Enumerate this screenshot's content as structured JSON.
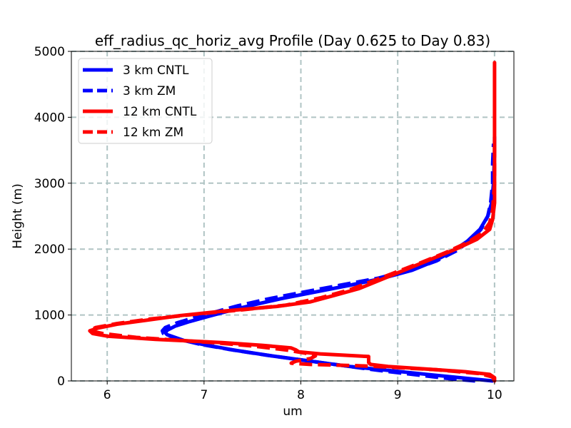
{
  "chart_data": {
    "type": "line",
    "title": "eff_radius_qc_horiz_avg Profile (Day 0.625 to Day 0.83)",
    "xlabel": "um",
    "ylabel": "Height (m)",
    "xlim": [
      5.63,
      10.2
    ],
    "ylim": [
      0,
      5000
    ],
    "xticks": [
      6,
      7,
      8,
      9,
      10
    ],
    "yticks": [
      0,
      1000,
      2000,
      3000,
      4000,
      5000
    ],
    "xtick_labels": [
      "6",
      "7",
      "8",
      "9",
      "10"
    ],
    "ytick_labels": [
      "0",
      "1000",
      "2000",
      "3000",
      "4000",
      "5000"
    ],
    "grid": true,
    "legend_position": "upper-left",
    "series": [
      {
        "name": "3 km CNTL",
        "color": "#0000ff",
        "style": "solid",
        "points": [
          [
            9.98,
            0
          ],
          [
            9.7,
            40
          ],
          [
            9.3,
            100
          ],
          [
            8.9,
            160
          ],
          [
            8.5,
            220
          ],
          [
            8.1,
            300
          ],
          [
            7.7,
            380
          ],
          [
            7.3,
            470
          ],
          [
            7.0,
            550
          ],
          [
            6.8,
            610
          ],
          [
            6.7,
            660
          ],
          [
            6.62,
            700
          ],
          [
            6.6,
            730
          ],
          [
            6.62,
            770
          ],
          [
            6.7,
            830
          ],
          [
            6.85,
            900
          ],
          [
            7.05,
            980
          ],
          [
            7.25,
            1060
          ],
          [
            7.5,
            1150
          ],
          [
            7.8,
            1250
          ],
          [
            8.15,
            1350
          ],
          [
            8.5,
            1450
          ],
          [
            8.85,
            1560
          ],
          [
            9.15,
            1680
          ],
          [
            9.35,
            1800
          ],
          [
            9.55,
            1950
          ],
          [
            9.72,
            2120
          ],
          [
            9.85,
            2300
          ],
          [
            9.93,
            2500
          ],
          [
            9.97,
            2700
          ],
          [
            9.99,
            3000
          ],
          [
            10.0,
            3500
          ],
          [
            10.0,
            3700
          ]
        ]
      },
      {
        "name": "3 km ZM",
        "color": "#0000ff",
        "style": "dashed",
        "points": [
          [
            9.8,
            0
          ],
          [
            9.5,
            40
          ],
          [
            9.15,
            100
          ],
          [
            8.8,
            160
          ],
          [
            8.45,
            230
          ],
          [
            8.05,
            310
          ],
          [
            7.65,
            390
          ],
          [
            7.25,
            480
          ],
          [
            6.95,
            560
          ],
          [
            6.75,
            630
          ],
          [
            6.65,
            680
          ],
          [
            6.58,
            720
          ],
          [
            6.57,
            760
          ],
          [
            6.6,
            810
          ],
          [
            6.72,
            880
          ],
          [
            6.9,
            960
          ],
          [
            7.1,
            1040
          ],
          [
            7.35,
            1140
          ],
          [
            7.65,
            1240
          ],
          [
            8.0,
            1340
          ],
          [
            8.4,
            1450
          ],
          [
            8.8,
            1560
          ],
          [
            9.15,
            1690
          ],
          [
            9.4,
            1820
          ],
          [
            9.6,
            1970
          ],
          [
            9.75,
            2130
          ],
          [
            9.86,
            2300
          ],
          [
            9.93,
            2500
          ],
          [
            9.96,
            2700
          ],
          [
            9.98,
            3000
          ],
          [
            9.98,
            3300
          ],
          [
            9.99,
            3600
          ]
        ]
      },
      {
        "name": "12 km CNTL",
        "color": "#ff0000",
        "style": "solid",
        "points": [
          [
            10.0,
            0
          ],
          [
            10.0,
            50
          ],
          [
            9.95,
            100
          ],
          [
            9.7,
            140
          ],
          [
            9.3,
            180
          ],
          [
            8.9,
            220
          ],
          [
            8.72,
            250
          ],
          [
            8.7,
            280
          ],
          [
            8.7,
            370
          ],
          [
            8.2,
            410
          ],
          [
            7.98,
            440
          ],
          [
            7.95,
            470
          ],
          [
            7.9,
            500
          ],
          [
            7.6,
            540
          ],
          [
            7.2,
            580
          ],
          [
            6.8,
            610
          ],
          [
            6.5,
            630
          ],
          [
            6.0,
            680
          ],
          [
            5.85,
            720
          ],
          [
            5.82,
            760
          ],
          [
            5.9,
            800
          ],
          [
            6.1,
            860
          ],
          [
            6.4,
            920
          ],
          [
            6.75,
            990
          ],
          [
            7.2,
            1060
          ],
          [
            7.75,
            1130
          ],
          [
            8.1,
            1200
          ],
          [
            8.35,
            1300
          ],
          [
            8.6,
            1400
          ],
          [
            8.85,
            1550
          ],
          [
            9.1,
            1700
          ],
          [
            9.35,
            1850
          ],
          [
            9.6,
            2000
          ],
          [
            9.82,
            2150
          ],
          [
            9.95,
            2300
          ],
          [
            9.98,
            2450
          ],
          [
            10.0,
            2700
          ],
          [
            10.0,
            3500
          ],
          [
            10.0,
            4000
          ],
          [
            10.0,
            4500
          ],
          [
            10.0,
            4830
          ]
        ]
      },
      {
        "name": "12 km ZM",
        "color": "#ff0000",
        "style": "dashed",
        "points": [
          [
            10.0,
            0
          ],
          [
            9.98,
            60
          ],
          [
            9.85,
            110
          ],
          [
            9.4,
            170
          ],
          [
            8.9,
            210
          ],
          [
            8.6,
            230
          ],
          [
            8.1,
            250
          ],
          [
            7.9,
            270
          ],
          [
            7.95,
            300
          ],
          [
            8.1,
            340
          ],
          [
            8.15,
            380
          ],
          [
            8.05,
            420
          ],
          [
            7.85,
            470
          ],
          [
            7.5,
            530
          ],
          [
            7.1,
            580
          ],
          [
            6.7,
            620
          ],
          [
            6.3,
            660
          ],
          [
            5.95,
            720
          ],
          [
            5.82,
            760
          ],
          [
            5.88,
            810
          ],
          [
            6.1,
            870
          ],
          [
            6.45,
            940
          ],
          [
            6.9,
            1010
          ],
          [
            7.4,
            1080
          ],
          [
            7.85,
            1150
          ],
          [
            8.2,
            1260
          ],
          [
            8.5,
            1380
          ],
          [
            8.75,
            1520
          ],
          [
            9.0,
            1660
          ],
          [
            9.25,
            1800
          ],
          [
            9.5,
            1950
          ],
          [
            9.72,
            2100
          ],
          [
            9.88,
            2250
          ],
          [
            9.95,
            2400
          ],
          [
            9.98,
            2600
          ],
          [
            10.0,
            3000
          ],
          [
            10.0,
            3600
          ]
        ]
      }
    ]
  }
}
